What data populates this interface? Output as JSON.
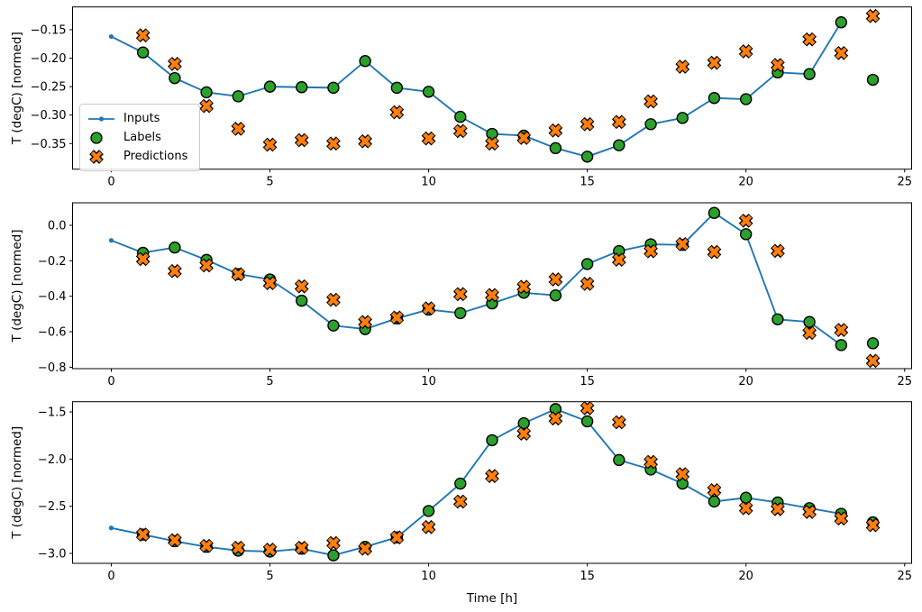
{
  "figure": {
    "xlabel": "Time [h]",
    "ylabel": "T (degC) [normed]",
    "colors": {
      "inputs": "#1f77b4",
      "labels": "#2ca02c",
      "predictions": "#ff7f0e",
      "marker_edge": "#000000",
      "axis": "#000000",
      "legend_border": "#cccccc",
      "background": "#ffffff"
    },
    "legend": {
      "position": "upper-left-of-first-subplot",
      "items": [
        {
          "name": "inputs",
          "label": "Inputs"
        },
        {
          "name": "labels",
          "label": "Labels"
        },
        {
          "name": "predictions",
          "label": "Predictions"
        }
      ]
    }
  },
  "chart_data": [
    {
      "type": "line",
      "title": "",
      "xlabel": "",
      "ylabel": "T (degC) [normed]",
      "xlim": [
        -1.22,
        25.22
      ],
      "ylim": [
        -0.395,
        -0.11
      ],
      "grid": false,
      "legend": true,
      "xticks": {
        "values": [
          0,
          5,
          10,
          15,
          20,
          25
        ],
        "labels": [
          "0",
          "5",
          "10",
          "15",
          "20",
          "25"
        ]
      },
      "yticks": {
        "values": [
          -0.15,
          -0.2,
          -0.25,
          -0.3,
          -0.35
        ],
        "labels": [
          "−0.15",
          "−0.20",
          "−0.25",
          "−0.30",
          "−0.35"
        ]
      },
      "series": [
        {
          "name": "Inputs",
          "style": "line-dot",
          "x": [
            0,
            1,
            2,
            3,
            4,
            5,
            6,
            7,
            8,
            9,
            10,
            11,
            12,
            13,
            14,
            15,
            16,
            17,
            18,
            19,
            20,
            21,
            22,
            23
          ],
          "y": [
            -0.162,
            -0.19,
            -0.235,
            -0.26,
            -0.267,
            -0.25,
            -0.251,
            -0.252,
            -0.205,
            -0.252,
            -0.259,
            -0.303,
            -0.333,
            -0.336,
            -0.358,
            -0.373,
            -0.353,
            -0.316,
            -0.305,
            -0.27,
            -0.272,
            -0.225,
            -0.228,
            -0.137
          ]
        },
        {
          "name": "Labels",
          "style": "scatter-circle",
          "x": [
            1,
            2,
            3,
            4,
            5,
            6,
            7,
            8,
            9,
            10,
            11,
            12,
            13,
            14,
            15,
            16,
            17,
            18,
            19,
            20,
            21,
            22,
            23,
            24
          ],
          "y": [
            -0.19,
            -0.235,
            -0.26,
            -0.267,
            -0.25,
            -0.251,
            -0.252,
            -0.205,
            -0.252,
            -0.259,
            -0.303,
            -0.333,
            -0.336,
            -0.358,
            -0.373,
            -0.353,
            -0.316,
            -0.305,
            -0.27,
            -0.272,
            -0.225,
            -0.228,
            -0.137,
            -0.238
          ]
        },
        {
          "name": "Predictions",
          "style": "scatter-x",
          "x": [
            1,
            2,
            3,
            4,
            5,
            6,
            7,
            8,
            9,
            10,
            11,
            12,
            13,
            14,
            15,
            16,
            17,
            18,
            19,
            20,
            21,
            22,
            23,
            24
          ],
          "y": [
            -0.16,
            -0.21,
            -0.284,
            -0.324,
            -0.352,
            -0.344,
            -0.35,
            -0.346,
            -0.295,
            -0.341,
            -0.328,
            -0.35,
            -0.34,
            -0.327,
            -0.316,
            -0.312,
            -0.276,
            -0.215,
            -0.208,
            -0.188,
            -0.212,
            -0.167,
            -0.191,
            -0.126
          ]
        }
      ]
    },
    {
      "type": "line",
      "title": "",
      "xlabel": "",
      "ylabel": "T (degC) [normed]",
      "xlim": [
        -1.22,
        25.22
      ],
      "ylim": [
        -0.808,
        0.127
      ],
      "grid": false,
      "legend": false,
      "xticks": {
        "values": [
          0,
          5,
          10,
          15,
          20,
          25
        ],
        "labels": [
          "0",
          "5",
          "10",
          "15",
          "20",
          "25"
        ]
      },
      "yticks": {
        "values": [
          0.0,
          -0.2,
          -0.4,
          -0.6,
          -0.8
        ],
        "labels": [
          "0.0",
          "−0.2",
          "−0.4",
          "−0.6",
          "−0.8"
        ]
      },
      "series": [
        {
          "name": "Inputs",
          "style": "line-dot",
          "x": [
            0,
            1,
            2,
            3,
            4,
            5,
            6,
            7,
            8,
            9,
            10,
            11,
            12,
            13,
            14,
            15,
            16,
            17,
            18,
            19,
            20,
            21,
            22,
            23
          ],
          "y": [
            -0.085,
            -0.155,
            -0.125,
            -0.195,
            -0.275,
            -0.305,
            -0.425,
            -0.565,
            -0.585,
            -0.525,
            -0.475,
            -0.495,
            -0.44,
            -0.38,
            -0.395,
            -0.218,
            -0.145,
            -0.107,
            -0.11,
            0.07,
            -0.05,
            -0.53,
            -0.545,
            -0.675
          ]
        },
        {
          "name": "Labels",
          "style": "scatter-circle",
          "x": [
            1,
            2,
            3,
            4,
            5,
            6,
            7,
            8,
            9,
            10,
            11,
            12,
            13,
            14,
            15,
            16,
            17,
            18,
            19,
            20,
            21,
            22,
            23,
            24
          ],
          "y": [
            -0.155,
            -0.125,
            -0.195,
            -0.275,
            -0.305,
            -0.425,
            -0.565,
            -0.585,
            -0.525,
            -0.475,
            -0.495,
            -0.44,
            -0.38,
            -0.395,
            -0.218,
            -0.145,
            -0.107,
            -0.11,
            0.07,
            -0.05,
            -0.53,
            -0.545,
            -0.675,
            -0.665
          ]
        },
        {
          "name": "Predictions",
          "style": "scatter-x",
          "x": [
            1,
            2,
            3,
            4,
            5,
            6,
            7,
            8,
            9,
            10,
            11,
            12,
            13,
            14,
            15,
            16,
            17,
            18,
            19,
            20,
            21,
            22,
            23,
            24
          ],
          "y": [
            -0.19,
            -0.258,
            -0.226,
            -0.276,
            -0.326,
            -0.344,
            -0.42,
            -0.545,
            -0.52,
            -0.468,
            -0.388,
            -0.393,
            -0.347,
            -0.305,
            -0.33,
            -0.194,
            -0.146,
            -0.106,
            -0.15,
            0.026,
            -0.144,
            -0.606,
            -0.59,
            -0.764
          ]
        }
      ]
    },
    {
      "type": "line",
      "title": "",
      "xlabel": "Time [h]",
      "ylabel": "T (degC) [normed]",
      "xlim": [
        -1.22,
        25.22
      ],
      "ylim": [
        -3.105,
        -1.392
      ],
      "grid": false,
      "legend": false,
      "xticks": {
        "values": [
          0,
          5,
          10,
          15,
          20,
          25
        ],
        "labels": [
          "0",
          "5",
          "10",
          "15",
          "20",
          "25"
        ]
      },
      "yticks": {
        "values": [
          -1.5,
          -2.0,
          -2.5,
          -3.0
        ],
        "labels": [
          "−1.5",
          "−2.0",
          "−2.5",
          "−3.0"
        ]
      },
      "series": [
        {
          "name": "Inputs",
          "style": "line-dot",
          "x": [
            0,
            1,
            2,
            3,
            4,
            5,
            6,
            7,
            8,
            9,
            10,
            11,
            12,
            13,
            14,
            15,
            16,
            17,
            18,
            19,
            20,
            21,
            22,
            23
          ],
          "y": [
            -2.73,
            -2.8,
            -2.87,
            -2.93,
            -2.97,
            -2.98,
            -2.95,
            -3.02,
            -2.93,
            -2.83,
            -2.55,
            -2.26,
            -1.8,
            -1.62,
            -1.47,
            -1.6,
            -2.01,
            -2.11,
            -2.26,
            -2.45,
            -2.41,
            -2.46,
            -2.52,
            -2.58
          ]
        },
        {
          "name": "Labels",
          "style": "scatter-circle",
          "x": [
            1,
            2,
            3,
            4,
            5,
            6,
            7,
            8,
            9,
            10,
            11,
            12,
            13,
            14,
            15,
            16,
            17,
            18,
            19,
            20,
            21,
            22,
            23,
            24
          ],
          "y": [
            -2.8,
            -2.87,
            -2.93,
            -2.97,
            -2.98,
            -2.95,
            -3.02,
            -2.93,
            -2.83,
            -2.55,
            -2.26,
            -1.8,
            -1.62,
            -1.47,
            -1.6,
            -2.01,
            -2.11,
            -2.26,
            -2.45,
            -2.41,
            -2.46,
            -2.52,
            -2.58,
            -2.67
          ]
        },
        {
          "name": "Predictions",
          "style": "scatter-x",
          "x": [
            1,
            2,
            3,
            4,
            5,
            6,
            7,
            8,
            9,
            10,
            11,
            12,
            13,
            14,
            15,
            16,
            17,
            18,
            19,
            20,
            21,
            22,
            23,
            24
          ],
          "y": [
            -2.8,
            -2.86,
            -2.92,
            -2.94,
            -2.96,
            -2.94,
            -2.89,
            -2.95,
            -2.83,
            -2.72,
            -2.45,
            -2.18,
            -1.73,
            -1.57,
            -1.46,
            -1.61,
            -2.03,
            -2.16,
            -2.33,
            -2.52,
            -2.53,
            -2.56,
            -2.63,
            -2.7
          ]
        }
      ]
    }
  ]
}
